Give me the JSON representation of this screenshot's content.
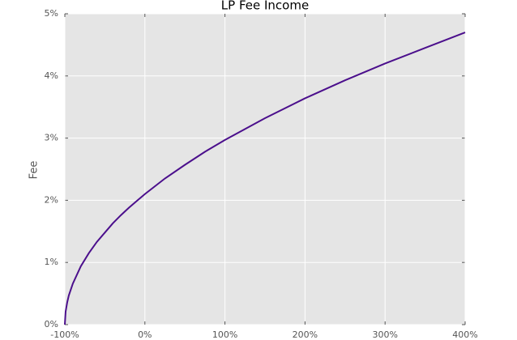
{
  "chart_data": {
    "type": "line",
    "title": "LP Fee Income",
    "y_label": "Fee",
    "x": [
      -100,
      -99,
      -97,
      -95,
      -90,
      -80,
      -70,
      -60,
      -50,
      -40,
      -30,
      -20,
      -10,
      0,
      25,
      50,
      75,
      100,
      150,
      200,
      250,
      300,
      350,
      400
    ],
    "series": [
      {
        "color": "#4b0f8c",
        "values": [
          0,
          0.21,
          0.36,
          0.47,
          0.66,
          0.94,
          1.15,
          1.33,
          1.48,
          1.63,
          1.76,
          1.88,
          1.99,
          2.1,
          2.35,
          2.57,
          2.78,
          2.97,
          3.32,
          3.64,
          3.93,
          4.2,
          4.45,
          4.7
        ]
      }
    ],
    "xlim": [
      -100,
      400
    ],
    "xticks": [
      {
        "value": -100,
        "label": "-100%"
      },
      {
        "value": 0,
        "label": "0%"
      },
      {
        "value": 100,
        "label": "100%"
      },
      {
        "value": 200,
        "label": "200%"
      },
      {
        "value": 300,
        "label": "300%"
      },
      {
        "value": 400,
        "label": "400%"
      }
    ],
    "ylim": [
      0,
      5
    ],
    "yticks": [
      {
        "value": 0,
        "label": "0%"
      },
      {
        "value": 1,
        "label": "1%"
      },
      {
        "value": 2,
        "label": "2%"
      },
      {
        "value": 3,
        "label": "3%"
      },
      {
        "value": 4,
        "label": "4%"
      },
      {
        "value": 5,
        "label": "5%"
      }
    ],
    "grid": true
  }
}
